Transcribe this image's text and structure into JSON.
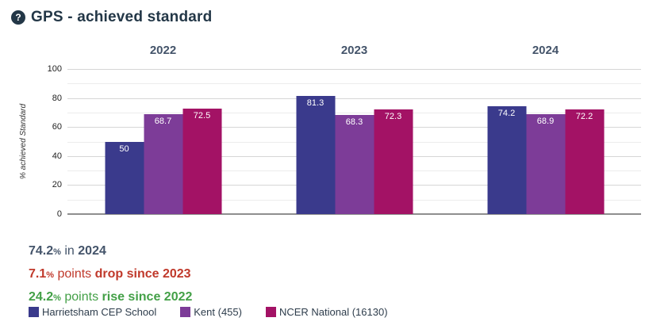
{
  "header": {
    "help_glyph": "?",
    "title": "GPS - achieved standard"
  },
  "chart_data": {
    "type": "bar",
    "title": "GPS - achieved standard",
    "categories": [
      "2022",
      "2023",
      "2024"
    ],
    "series": [
      {
        "name": "Harrietsham CEP School",
        "color": "#3a3a8c",
        "values": [
          50,
          81.3,
          74.2
        ]
      },
      {
        "name": "Kent (455)",
        "color": "#7d3c98",
        "values": [
          68.7,
          68.3,
          68.9
        ]
      },
      {
        "name": "NCER National (16130)",
        "color": "#a31265",
        "values": [
          72.5,
          72.3,
          72.2
        ]
      }
    ],
    "xlabel": "",
    "ylabel": "% achieved Standard",
    "ylim": [
      0,
      100
    ],
    "yticks": [
      0,
      20,
      40,
      60,
      80,
      100
    ],
    "grid": "horizontal lines every 10, labels every 20",
    "legend_position": "bottom",
    "bar_value_labels": "inside top, white"
  },
  "summary_lines": [
    {
      "color": "#44546a",
      "segments": [
        {
          "text": "74.2",
          "bold": true
        },
        {
          "text": "%",
          "bold": true,
          "small": true
        },
        {
          "text": " in ",
          "bold": false
        },
        {
          "text": "2024",
          "bold": true
        }
      ]
    },
    {
      "color": "#c0392b",
      "segments": [
        {
          "text": "7.1",
          "bold": true
        },
        {
          "text": "%",
          "bold": true,
          "small": true
        },
        {
          "text": " points ",
          "bold": false
        },
        {
          "text": "drop since 2023",
          "bold": true
        }
      ]
    },
    {
      "color": "#43a047",
      "segments": [
        {
          "text": "24.2",
          "bold": true
        },
        {
          "text": "%",
          "bold": true,
          "small": true
        },
        {
          "text": " points ",
          "bold": false
        },
        {
          "text": "rise since 2022",
          "bold": true
        }
      ]
    }
  ],
  "legend": [
    {
      "label": "Harrietsham CEP School",
      "color": "#3a3a8c"
    },
    {
      "label": "Kent (455)",
      "color": "#7d3c98"
    },
    {
      "label": "NCER National (16130)",
      "color": "#a31265"
    }
  ]
}
